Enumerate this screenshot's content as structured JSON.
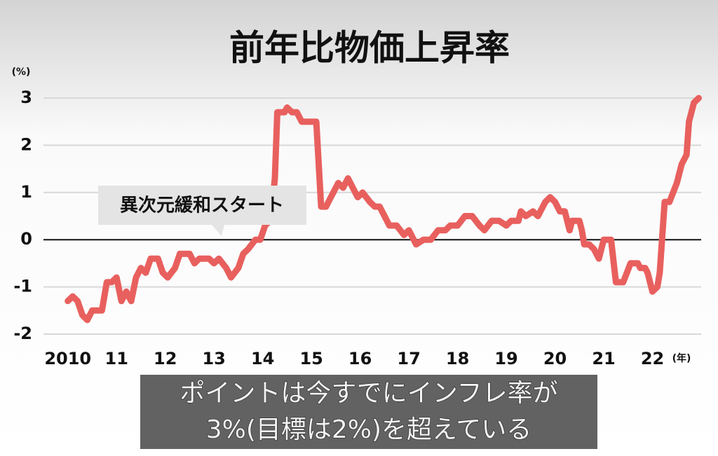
{
  "chart_data": {
    "type": "line",
    "title": "前年比物価上昇率",
    "y_unit": "(%)",
    "x_unit": "(年)",
    "annotation": "異次元緩和スタート",
    "color": "#e8605e",
    "grid": true,
    "xlim": [
      2009.5,
      2023
    ],
    "ylim": [
      -2,
      3
    ],
    "xticks": [
      2010,
      {
        "value": 2011,
        "label": "11"
      },
      {
        "value": 2012,
        "label": "12"
      },
      {
        "value": 2013,
        "label": "13"
      },
      {
        "value": 2014,
        "label": "14"
      },
      {
        "value": 2015,
        "label": "15"
      },
      {
        "value": 2016,
        "label": "16"
      },
      {
        "value": 2017,
        "label": "17"
      },
      {
        "value": 2018,
        "label": "18"
      },
      {
        "value": 2019,
        "label": "19"
      },
      {
        "value": 2020,
        "label": "20"
      },
      {
        "value": 2021,
        "label": "21"
      },
      {
        "value": 2022,
        "label": "22"
      }
    ],
    "yticks": [
      -2,
      -1,
      0,
      1,
      2,
      3
    ],
    "x": [
      2010.0,
      2010.1,
      2010.2,
      2010.3,
      2010.4,
      2010.5,
      2010.7,
      2010.8,
      2010.9,
      2011.0,
      2011.1,
      2011.2,
      2011.3,
      2011.4,
      2011.5,
      2011.6,
      2011.7,
      2011.85,
      2011.95,
      2012.05,
      2012.2,
      2012.3,
      2012.5,
      2012.6,
      2012.7,
      2012.9,
      2013.0,
      2013.1,
      2013.25,
      2013.35,
      2013.5,
      2013.6,
      2013.7,
      2013.85,
      2013.95,
      2014.05,
      2014.15,
      2014.2,
      2014.25,
      2014.3,
      2014.45,
      2014.5,
      2014.6,
      2014.7,
      2014.8,
      2015.1,
      2015.2,
      2015.3,
      2015.4,
      2015.55,
      2015.65,
      2015.75,
      2015.85,
      2015.95,
      2016.05,
      2016.2,
      2016.3,
      2016.4,
      2016.5,
      2016.6,
      2016.75,
      2016.9,
      2017.0,
      2017.15,
      2017.3,
      2017.45,
      2017.6,
      2017.75,
      2017.85,
      2018.0,
      2018.15,
      2018.3,
      2018.45,
      2018.55,
      2018.7,
      2018.85,
      2019.0,
      2019.1,
      2019.25,
      2019.3,
      2019.4,
      2019.55,
      2019.65,
      2019.8,
      2019.9,
      2020.0,
      2020.1,
      2020.2,
      2020.3,
      2020.35,
      2020.5,
      2020.55,
      2020.6,
      2020.7,
      2020.8,
      2020.9,
      2021.0,
      2021.15,
      2021.25,
      2021.4,
      2021.55,
      2021.7,
      2021.75,
      2021.85,
      2021.9,
      2022.0,
      2022.1,
      2022.15,
      2022.25,
      2022.35,
      2022.5,
      2022.6,
      2022.7,
      2022.75,
      2022.85,
      2022.95
    ],
    "values": [
      -1.3,
      -1.2,
      -1.3,
      -1.6,
      -1.7,
      -1.5,
      -1.5,
      -0.9,
      -0.9,
      -0.8,
      -1.3,
      -1.1,
      -1.3,
      -0.8,
      -0.6,
      -0.7,
      -0.4,
      -0.4,
      -0.7,
      -0.8,
      -0.6,
      -0.3,
      -0.3,
      -0.5,
      -0.4,
      -0.4,
      -0.5,
      -0.4,
      -0.6,
      -0.8,
      -0.6,
      -0.3,
      -0.2,
      0,
      0,
      0.3,
      0.4,
      0.8,
      1.3,
      2.7,
      2.7,
      2.8,
      2.7,
      2.7,
      2.5,
      2.5,
      0.7,
      0.7,
      0.9,
      1.2,
      1.1,
      1.3,
      1.1,
      0.9,
      1.0,
      0.8,
      0.7,
      0.7,
      0.5,
      0.3,
      0.3,
      0.1,
      0.2,
      -0.1,
      0,
      0,
      0.2,
      0.2,
      0.3,
      0.3,
      0.5,
      0.5,
      0.3,
      0.2,
      0.4,
      0.4,
      0.3,
      0.4,
      0.4,
      0.6,
      0.5,
      0.6,
      0.5,
      0.8,
      0.9,
      0.8,
      0.6,
      0.6,
      0.2,
      0.4,
      0.4,
      0.2,
      -0.1,
      -0.1,
      -0.2,
      -0.4,
      0,
      0,
      -0.9,
      -0.9,
      -0.5,
      -0.5,
      -0.6,
      -0.6,
      -0.7,
      -1.1,
      -1.0,
      -0.7,
      0.8,
      0.8,
      1.2,
      1.6,
      1.8,
      2.5,
      2.9,
      3.0
    ]
  },
  "caption": [
    "ポイントは今すでにインフレ率が",
    "3%(目標は2%)を超えている"
  ]
}
